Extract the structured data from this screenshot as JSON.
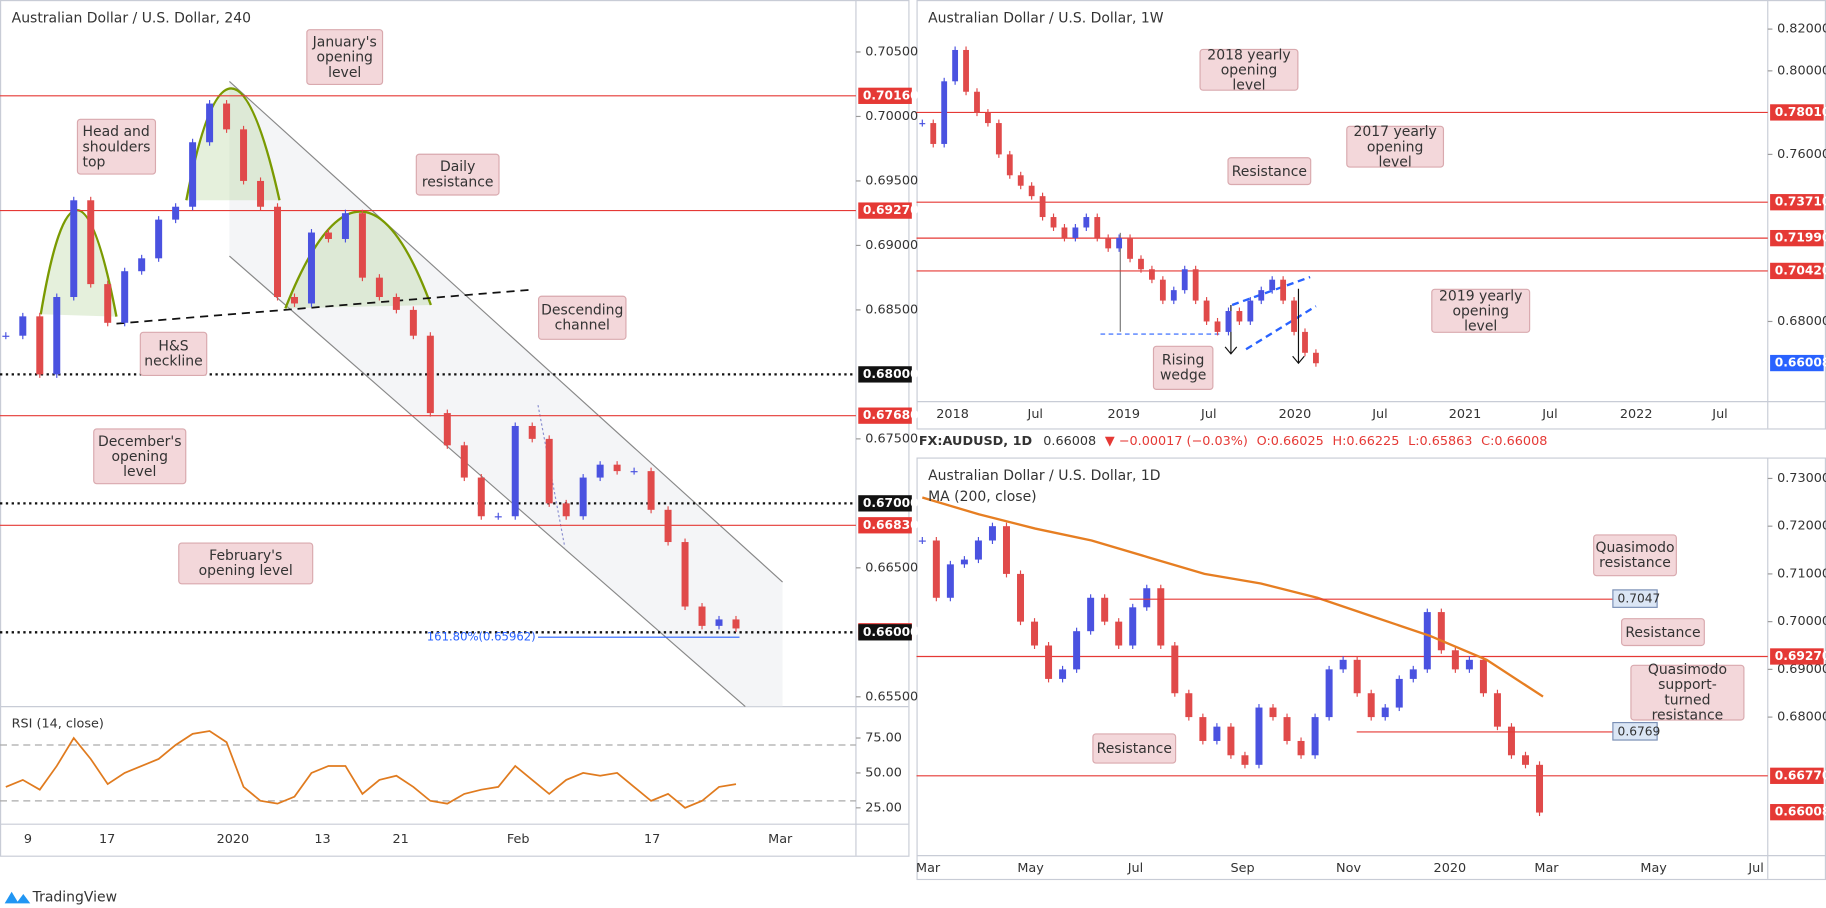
{
  "panels": [
    {
      "title": "Australian Dollar / U.S. Dollar, 240",
      "ylim": [
        0.65424,
        0.70903
      ],
      "yticks": [
        {
          "value": 0.655,
          "label": "0.65500"
        },
        {
          "value": 0.665,
          "label": "0.66500"
        },
        {
          "value": 0.675,
          "label": "0.67500"
        },
        {
          "value": 0.685,
          "label": "0.68500"
        },
        {
          "value": 0.69,
          "label": "0.69000"
        },
        {
          "value": 0.695,
          "label": "0.69500"
        },
        {
          "value": 0.7,
          "label": "0.70000"
        },
        {
          "value": 0.705,
          "label": "0.70500"
        }
      ],
      "levels": [
        {
          "value": 0.7016,
          "label": "0.70160",
          "color": "#e53935",
          "style": "solid"
        },
        {
          "value": 0.6927,
          "label": "0.69270",
          "color": "#e53935",
          "style": "solid"
        },
        {
          "value": 0.68,
          "label": "0.68000",
          "color": "#111111",
          "style": "dotted"
        },
        {
          "value": 0.6768,
          "label": "0.67680",
          "color": "#e53935",
          "style": "solid"
        },
        {
          "value": 0.67,
          "label": "0.67000",
          "color": "#111111",
          "style": "dotted"
        },
        {
          "value": 0.6683,
          "label": "0.66830",
          "color": "#e53935",
          "style": "solid"
        },
        {
          "value": 0.66008,
          "label": "0.66008",
          "color": "#e53935",
          "style": "none"
        },
        {
          "value": 0.66,
          "label": "0.66000",
          "color": "#111111",
          "style": "dotted"
        }
      ],
      "fib": {
        "value": 0.65962,
        "label": "161.80%(0.65962)",
        "color": "#2962ff"
      },
      "values": [
        0.683,
        0.6845,
        0.68,
        0.686,
        0.6935,
        0.687,
        0.684,
        0.688,
        0.689,
        0.692,
        0.693,
        0.698,
        0.701,
        0.699,
        0.695,
        0.693,
        0.686,
        0.6855,
        0.691,
        0.6905,
        0.6925,
        0.6875,
        0.686,
        0.685,
        0.683,
        0.677,
        0.6745,
        0.672,
        0.669,
        0.669,
        0.676,
        0.675,
        0.67,
        0.669,
        0.672,
        0.673,
        0.6725,
        0.6725,
        0.6695,
        0.667,
        0.662,
        0.6605,
        0.661,
        0.6603
      ],
      "x_labels": [
        "9",
        "17",
        "2020",
        "13",
        "21",
        "Feb",
        "17",
        "Mar"
      ],
      "annotations": [
        "January's opening level",
        "Head and shoulders top",
        "Daily resistance",
        "Descending channel",
        "H&S neckline",
        "December's opening level",
        "February's opening level"
      ]
    },
    {
      "title": "Australian Dollar / U.S. Dollar, 1W",
      "ylim": [
        0.64162,
        0.83393
      ],
      "yticks": [
        {
          "value": 0.68,
          "label": "0.68000"
        },
        {
          "value": 0.76,
          "label": "0.76000"
        },
        {
          "value": 0.8,
          "label": "0.80000"
        },
        {
          "value": 0.82,
          "label": "0.82000"
        }
      ],
      "levels": [
        {
          "value": 0.7801,
          "label": "0.78010",
          "color": "#e53935",
          "style": "solid"
        },
        {
          "value": 0.7371,
          "label": "0.73710",
          "color": "#e53935",
          "style": "solid"
        },
        {
          "value": 0.7199,
          "label": "0.71990",
          "color": "#e53935",
          "style": "solid"
        },
        {
          "value": 0.7042,
          "label": "0.70420",
          "color": "#e53935",
          "style": "solid"
        },
        {
          "value": 0.66008,
          "label": "0.66008",
          "color": "#2962ff",
          "style": "none"
        }
      ],
      "values": [
        0.775,
        0.765,
        0.795,
        0.81,
        0.79,
        0.78,
        0.775,
        0.76,
        0.75,
        0.745,
        0.74,
        0.73,
        0.725,
        0.72,
        0.725,
        0.73,
        0.72,
        0.715,
        0.72,
        0.71,
        0.705,
        0.7,
        0.69,
        0.695,
        0.705,
        0.69,
        0.68,
        0.675,
        0.685,
        0.68,
        0.69,
        0.695,
        0.7,
        0.69,
        0.675,
        0.665,
        0.66
      ],
      "x_labels": [
        "2018",
        "Jul",
        "2019",
        "Jul",
        "2020",
        "Jul",
        "2021",
        "Jul",
        "2022",
        "Jul"
      ],
      "annotations": [
        "2018 yearly opening level",
        "2017 yearly opening level",
        "Resistance",
        "2019 yearly opening level",
        "Rising wedge"
      ]
    },
    {
      "title": "Australian Dollar / U.S. Dollar, 1D",
      "ylim": [
        0.65098,
        0.73439
      ],
      "yticks": [
        {
          "value": 0.68,
          "label": "0.68000"
        },
        {
          "value": 0.69,
          "label": "0.69000"
        },
        {
          "value": 0.7,
          "label": "0.70000"
        },
        {
          "value": 0.71,
          "label": "0.71000"
        },
        {
          "value": 0.72,
          "label": "0.72000"
        },
        {
          "value": 0.73,
          "label": "0.73000"
        }
      ],
      "levels": [
        {
          "value": 0.6927,
          "label": "0.69270",
          "color": "#e53935",
          "style": "solid"
        },
        {
          "value": 0.6677,
          "label": "0.66770",
          "color": "#e53935",
          "style": "solid"
        },
        {
          "value": 0.66008,
          "label": "0.66008",
          "color": "#e53935",
          "style": "none"
        }
      ],
      "marked_levels": [
        0.7047,
        0.6769
      ],
      "ma": {
        "name": "MA (200, close)",
        "color": "#e67e22",
        "values": [
          0.726,
          0.7225,
          0.7195,
          0.717,
          0.7135,
          0.71,
          0.708,
          0.705,
          0.701,
          0.697,
          0.692,
          0.6843
        ]
      },
      "values": [
        0.717,
        0.705,
        0.712,
        0.713,
        0.717,
        0.72,
        0.71,
        0.7,
        0.695,
        0.688,
        0.69,
        0.698,
        0.705,
        0.7,
        0.695,
        0.703,
        0.707,
        0.695,
        0.685,
        0.68,
        0.675,
        0.678,
        0.672,
        0.67,
        0.682,
        0.68,
        0.675,
        0.672,
        0.68,
        0.69,
        0.692,
        0.685,
        0.68,
        0.682,
        0.688,
        0.69,
        0.702,
        0.694,
        0.69,
        0.692,
        0.685,
        0.678,
        0.672,
        0.67,
        0.66
      ],
      "x_labels": [
        "Mar",
        "May",
        "Jul",
        "Sep",
        "Nov",
        "2020",
        "Mar",
        "May",
        "Jul"
      ],
      "annotations": [
        "Quasimodo resistance",
        "Resistance",
        "Quasimodo support-turned resistance",
        "Resistance"
      ]
    }
  ],
  "rsi": {
    "title": "RSI (14, close)",
    "ylim": [
      13.3,
      97.5
    ],
    "yticks": [
      {
        "value": 25,
        "label": "25.00"
      },
      {
        "value": 50,
        "label": "50.00"
      },
      {
        "value": 75,
        "label": "75.00"
      }
    ],
    "bands": [
      70,
      30
    ],
    "color": "#e07b1f",
    "values": [
      40,
      45,
      38,
      55,
      75,
      60,
      42,
      50,
      55,
      60,
      70,
      78,
      80,
      72,
      40,
      30,
      28,
      33,
      50,
      55,
      55,
      35,
      45,
      48,
      40,
      30,
      28,
      35,
      38,
      40,
      55,
      45,
      35,
      45,
      50,
      48,
      50,
      40,
      30,
      35,
      25,
      30,
      40,
      42
    ]
  },
  "info": {
    "symbol": "FX:AUDUSD, 1D",
    "last": "0.66008",
    "change": "▼ −0.00017 (−0.03%)",
    "open": "O:0.66025",
    "high": "H:0.66225",
    "low": "L:0.65863",
    "close": "C:0.66008"
  },
  "footer": "TradingView"
}
